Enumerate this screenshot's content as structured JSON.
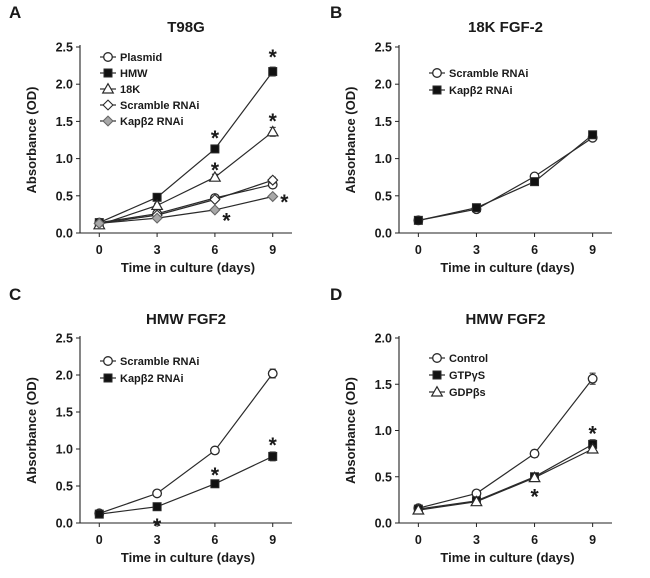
{
  "chart_data": [
    {
      "panel_id": "panel-a",
      "letter": "A",
      "title": "T98G",
      "type": "line",
      "xlabel": "Time in culture (days)",
      "ylabel": "Absorbance (OD)",
      "x": [
        0,
        3,
        6,
        9
      ],
      "xticks": [
        "0",
        "3",
        "6",
        "9"
      ],
      "ylim": [
        0,
        2.5
      ],
      "yticks": [
        "0.0",
        "0.5",
        "1.0",
        "1.5",
        "2.0",
        "2.5"
      ],
      "ystep": 0.5,
      "legend_position": "top-left",
      "series": [
        {
          "name": "Plasmid",
          "marker": "circle-open",
          "values": [
            0.14,
            0.26,
            0.47,
            0.65
          ],
          "errors": [
            0.01,
            0.02,
            0.03,
            0.04
          ]
        },
        {
          "name": "HMW",
          "marker": "square-filled",
          "values": [
            0.14,
            0.48,
            1.13,
            2.17
          ],
          "errors": [
            0.01,
            0.02,
            0.04,
            0.06
          ]
        },
        {
          "name": "18K",
          "marker": "triangle-open",
          "values": [
            0.11,
            0.37,
            0.75,
            1.36
          ],
          "errors": [
            0.01,
            0.03,
            0.04,
            0.06
          ]
        },
        {
          "name": "Scramble RNAi",
          "marker": "diamond-open",
          "values": [
            0.13,
            0.24,
            0.45,
            0.71
          ],
          "errors": [
            0.01,
            0.02,
            0.03,
            0.04
          ]
        },
        {
          "name": "Kapβ2 RNAi",
          "marker": "diamond-gray",
          "values": [
            0.13,
            0.2,
            0.31,
            0.49
          ],
          "errors": [
            0.01,
            0.02,
            0.03,
            0.03
          ]
        }
      ],
      "annotations": [
        {
          "label": "*",
          "x": 6,
          "y": 1.29
        },
        {
          "label": "*",
          "x": 9,
          "y": 2.38
        },
        {
          "label": "*",
          "x": 6,
          "y": 0.86
        },
        {
          "label": "*",
          "x": 9,
          "y": 1.52
        },
        {
          "label": "*",
          "x": 6.6,
          "y": 0.18
        },
        {
          "label": "*",
          "x": 9.6,
          "y": 0.43
        }
      ]
    },
    {
      "panel_id": "panel-b",
      "letter": "B",
      "title": "18K FGF-2",
      "type": "line",
      "xlabel": "Time in culture (days)",
      "ylabel": "Absorbance (OD)",
      "x": [
        0,
        3,
        6,
        9
      ],
      "xticks": [
        "0",
        "3",
        "6",
        "9"
      ],
      "ylim": [
        0,
        2.5
      ],
      "yticks": [
        "0.0",
        "0.5",
        "1.0",
        "1.5",
        "2.0",
        "2.5"
      ],
      "ystep": 0.5,
      "legend_position": "top-left",
      "series": [
        {
          "name": "Scramble RNAi",
          "marker": "circle-open",
          "values": [
            0.17,
            0.32,
            0.76,
            1.28
          ],
          "errors": [
            0.01,
            0.02,
            0.03,
            0.03
          ]
        },
        {
          "name": "Kapβ2 RNAi",
          "marker": "square-filled",
          "values": [
            0.17,
            0.34,
            0.69,
            1.32
          ],
          "errors": [
            0.01,
            0.02,
            0.03,
            0.03
          ]
        }
      ],
      "annotations": []
    },
    {
      "panel_id": "panel-c",
      "letter": "C",
      "title": "HMW FGF2",
      "type": "line",
      "xlabel": "Time in culture (days)",
      "ylabel": "Absorbance (OD)",
      "x": [
        0,
        3,
        6,
        9
      ],
      "xticks": [
        "0",
        "3",
        "6",
        "9"
      ],
      "ylim": [
        0,
        2.5
      ],
      "yticks": [
        "0.0",
        "0.5",
        "1.0",
        "1.5",
        "2.0",
        "2.5"
      ],
      "ystep": 0.5,
      "legend_position": "top-left",
      "series": [
        {
          "name": "Scramble RNAi",
          "marker": "circle-open",
          "values": [
            0.13,
            0.4,
            0.98,
            2.02
          ],
          "errors": [
            0.01,
            0.02,
            0.03,
            0.06
          ]
        },
        {
          "name": "Kapβ2 RNAi",
          "marker": "square-filled",
          "values": [
            0.12,
            0.22,
            0.53,
            0.9
          ],
          "errors": [
            0.01,
            0.02,
            0.03,
            0.06
          ]
        }
      ],
      "annotations": [
        {
          "label": "*",
          "x": 3,
          "y": -0.03
        },
        {
          "label": "*",
          "x": 6,
          "y": 0.66
        },
        {
          "label": "*",
          "x": 9,
          "y": 1.07
        }
      ]
    },
    {
      "panel_id": "panel-d",
      "letter": "D",
      "title": "HMW FGF2",
      "type": "line",
      "xlabel": "Time in culture (days)",
      "ylabel": "Absorbance (OD)",
      "x": [
        0,
        3,
        6,
        9
      ],
      "xticks": [
        "0",
        "3",
        "6",
        "9"
      ],
      "ylim": [
        0,
        2.0
      ],
      "yticks": [
        "0.0",
        "0.5",
        "1.0",
        "1.5",
        "2.0"
      ],
      "ystep": 0.5,
      "legend_position": "top-left",
      "series": [
        {
          "name": "Control",
          "marker": "circle-open",
          "values": [
            0.16,
            0.32,
            0.75,
            1.56
          ],
          "errors": [
            0.01,
            0.03,
            0.04,
            0.06
          ]
        },
        {
          "name": "GTPγS",
          "marker": "square-filled",
          "values": [
            0.15,
            0.24,
            0.5,
            0.85
          ],
          "errors": [
            0.01,
            0.02,
            0.03,
            0.05
          ]
        },
        {
          "name": "GDPβs",
          "marker": "triangle-open",
          "values": [
            0.14,
            0.23,
            0.49,
            0.8
          ],
          "errors": [
            0.01,
            0.02,
            0.03,
            0.04
          ]
        }
      ],
      "annotations": [
        {
          "label": "*",
          "x": 6,
          "y": 0.3
        },
        {
          "label": "*",
          "x": 9,
          "y": 0.98
        }
      ]
    }
  ],
  "colors": {
    "line": "#2a2a2a",
    "marker_fill_dark": "#111111",
    "marker_fill_gray": "#a8a8a8",
    "marker_fill_open": "#ffffff",
    "text": "#1a1a1a",
    "background": "#ffffff"
  }
}
